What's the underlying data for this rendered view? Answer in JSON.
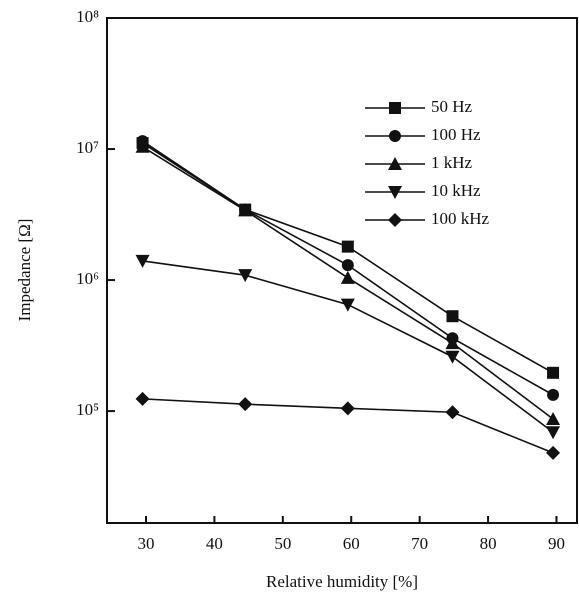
{
  "chart_data": {
    "type": "line",
    "log_y": true,
    "xlabel": "Relative humidity [%]",
    "ylabel": "Impedance [Ω]",
    "x": [
      29.5,
      44.5,
      59.5,
      74.8,
      89.5
    ],
    "series": [
      {
        "name": "50 Hz",
        "color": "#111111",
        "marker": "square",
        "values": [
          11100000,
          3450000,
          1800000,
          530000,
          196000
        ]
      },
      {
        "name": "100 Hz",
        "color": "#111111",
        "marker": "circle",
        "values": [
          11500000,
          3450000,
          1300000,
          360000,
          133000
        ]
      },
      {
        "name": "1 kHz",
        "color": "#111111",
        "marker": "triangle-up",
        "values": [
          10400000,
          3400000,
          1040000,
          330000,
          87000
        ]
      },
      {
        "name": "10 kHz",
        "color": "#111111",
        "marker": "triangle-down",
        "values": [
          1400000,
          1090000,
          650000,
          260000,
          69000
        ]
      },
      {
        "name": "100 kHz",
        "color": "#111111",
        "marker": "diamond",
        "values": [
          124000,
          113000,
          105000,
          98000,
          48000
        ]
      }
    ],
    "xlim": [
      24.3,
      93
    ],
    "xticks": [
      30,
      40,
      50,
      60,
      70,
      80,
      90
    ],
    "ylim": [
      14000,
      100000000
    ],
    "yticks": [
      {
        "value": 100000,
        "label": "10⁵"
      },
      {
        "value": 1000000,
        "label": "10⁶"
      },
      {
        "value": 10000000,
        "label": "10⁷"
      },
      {
        "value": 100000000,
        "label": "10⁸"
      }
    ],
    "legend": "upper-right"
  }
}
